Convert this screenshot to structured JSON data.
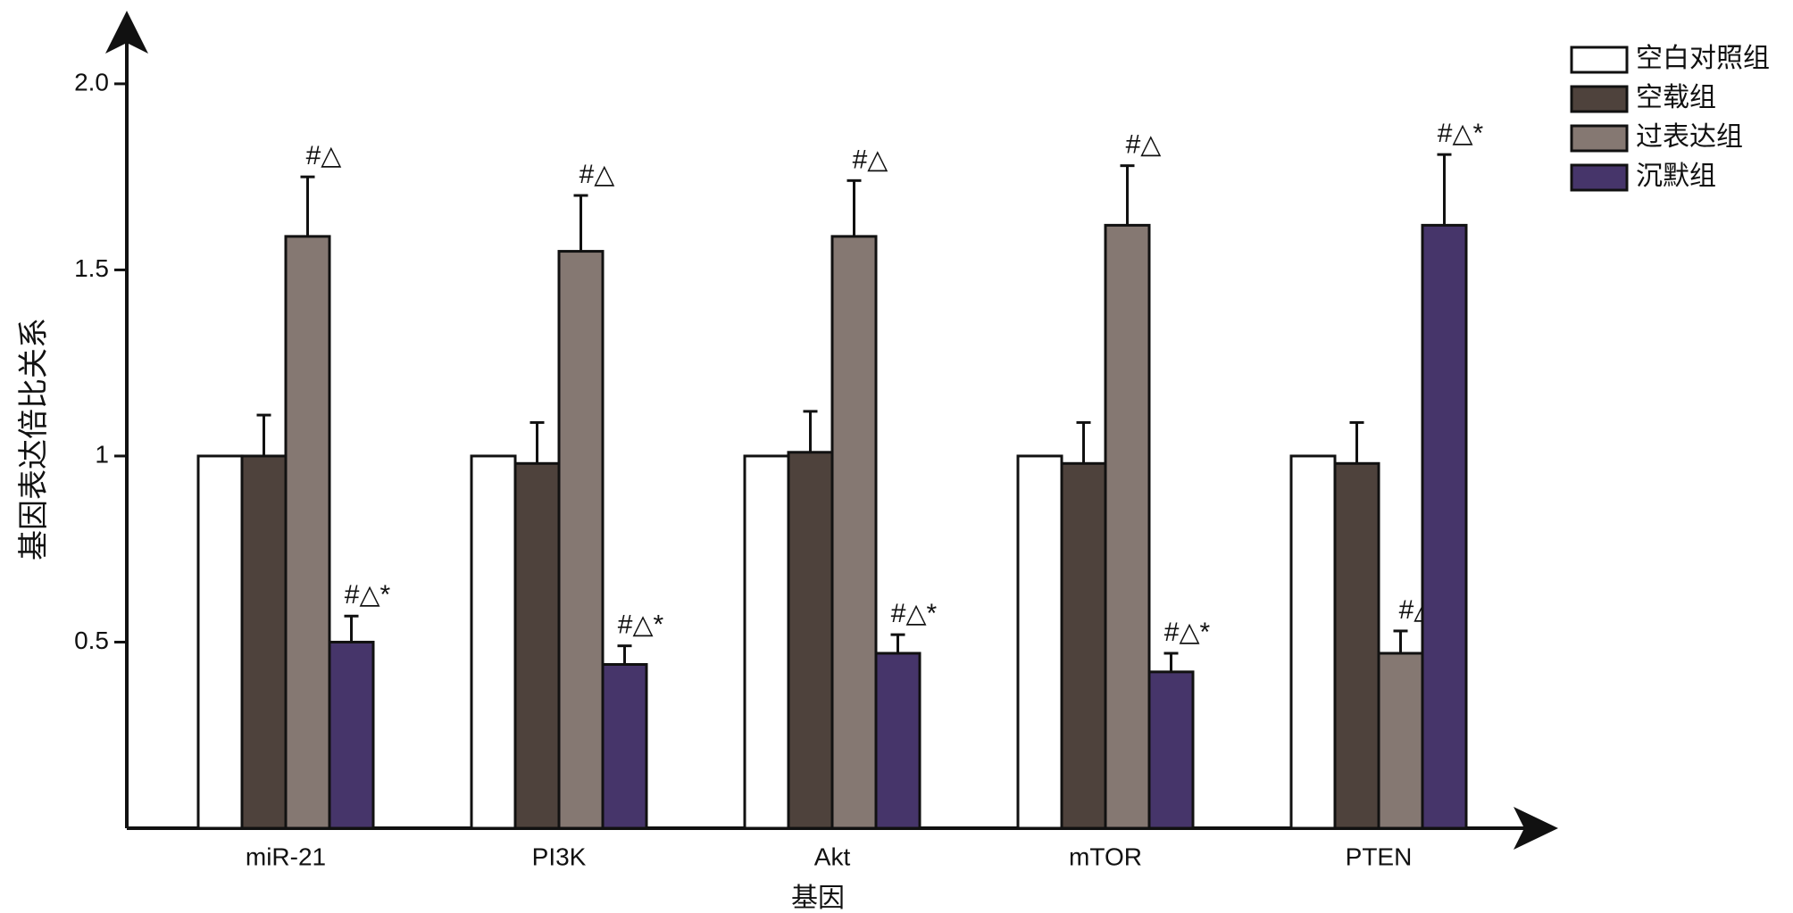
{
  "chart_data": {
    "type": "bar",
    "y_label": "基因表达倍比关系",
    "x_label": "基因",
    "categories": [
      "miR-21",
      "PI3K",
      "Akt",
      "mTOR",
      "PTEN"
    ],
    "series": [
      {
        "name": "空白对照组",
        "color": "#ffffff",
        "values": [
          1,
          1,
          1,
          1,
          1
        ],
        "errors": [
          null,
          null,
          null,
          null,
          null
        ],
        "annotations": [
          null,
          null,
          null,
          null,
          null
        ]
      },
      {
        "name": "空载组",
        "color": "#4e423c",
        "values": [
          1.0,
          0.98,
          1.01,
          0.98,
          0.98
        ],
        "errors": [
          0.11,
          0.11,
          0.11,
          0.11,
          0.11
        ],
        "annotations": [
          null,
          null,
          null,
          null,
          null
        ]
      },
      {
        "name": "过表达组",
        "color": "#857872",
        "values": [
          1.59,
          1.55,
          1.59,
          1.62,
          0.47
        ],
        "errors": [
          0.16,
          0.15,
          0.15,
          0.16,
          0.06
        ],
        "annotations": [
          "#△",
          "#△",
          "#△",
          "#△",
          "#△"
        ]
      },
      {
        "name": "沉默组",
        "color": "#46356a",
        "values": [
          0.5,
          0.44,
          0.47,
          0.42,
          1.62
        ],
        "errors": [
          0.07,
          0.05,
          0.05,
          0.05,
          0.19
        ],
        "annotations": [
          "#△*",
          "#△*",
          "#△*",
          "#△*",
          "#△*"
        ]
      }
    ],
    "ylim": [
      0,
      2.17
    ],
    "yticks": [
      0.5,
      1,
      1.5,
      {
        "value": 2,
        "label": "2.0"
      }
    ],
    "legend": "top-right"
  }
}
